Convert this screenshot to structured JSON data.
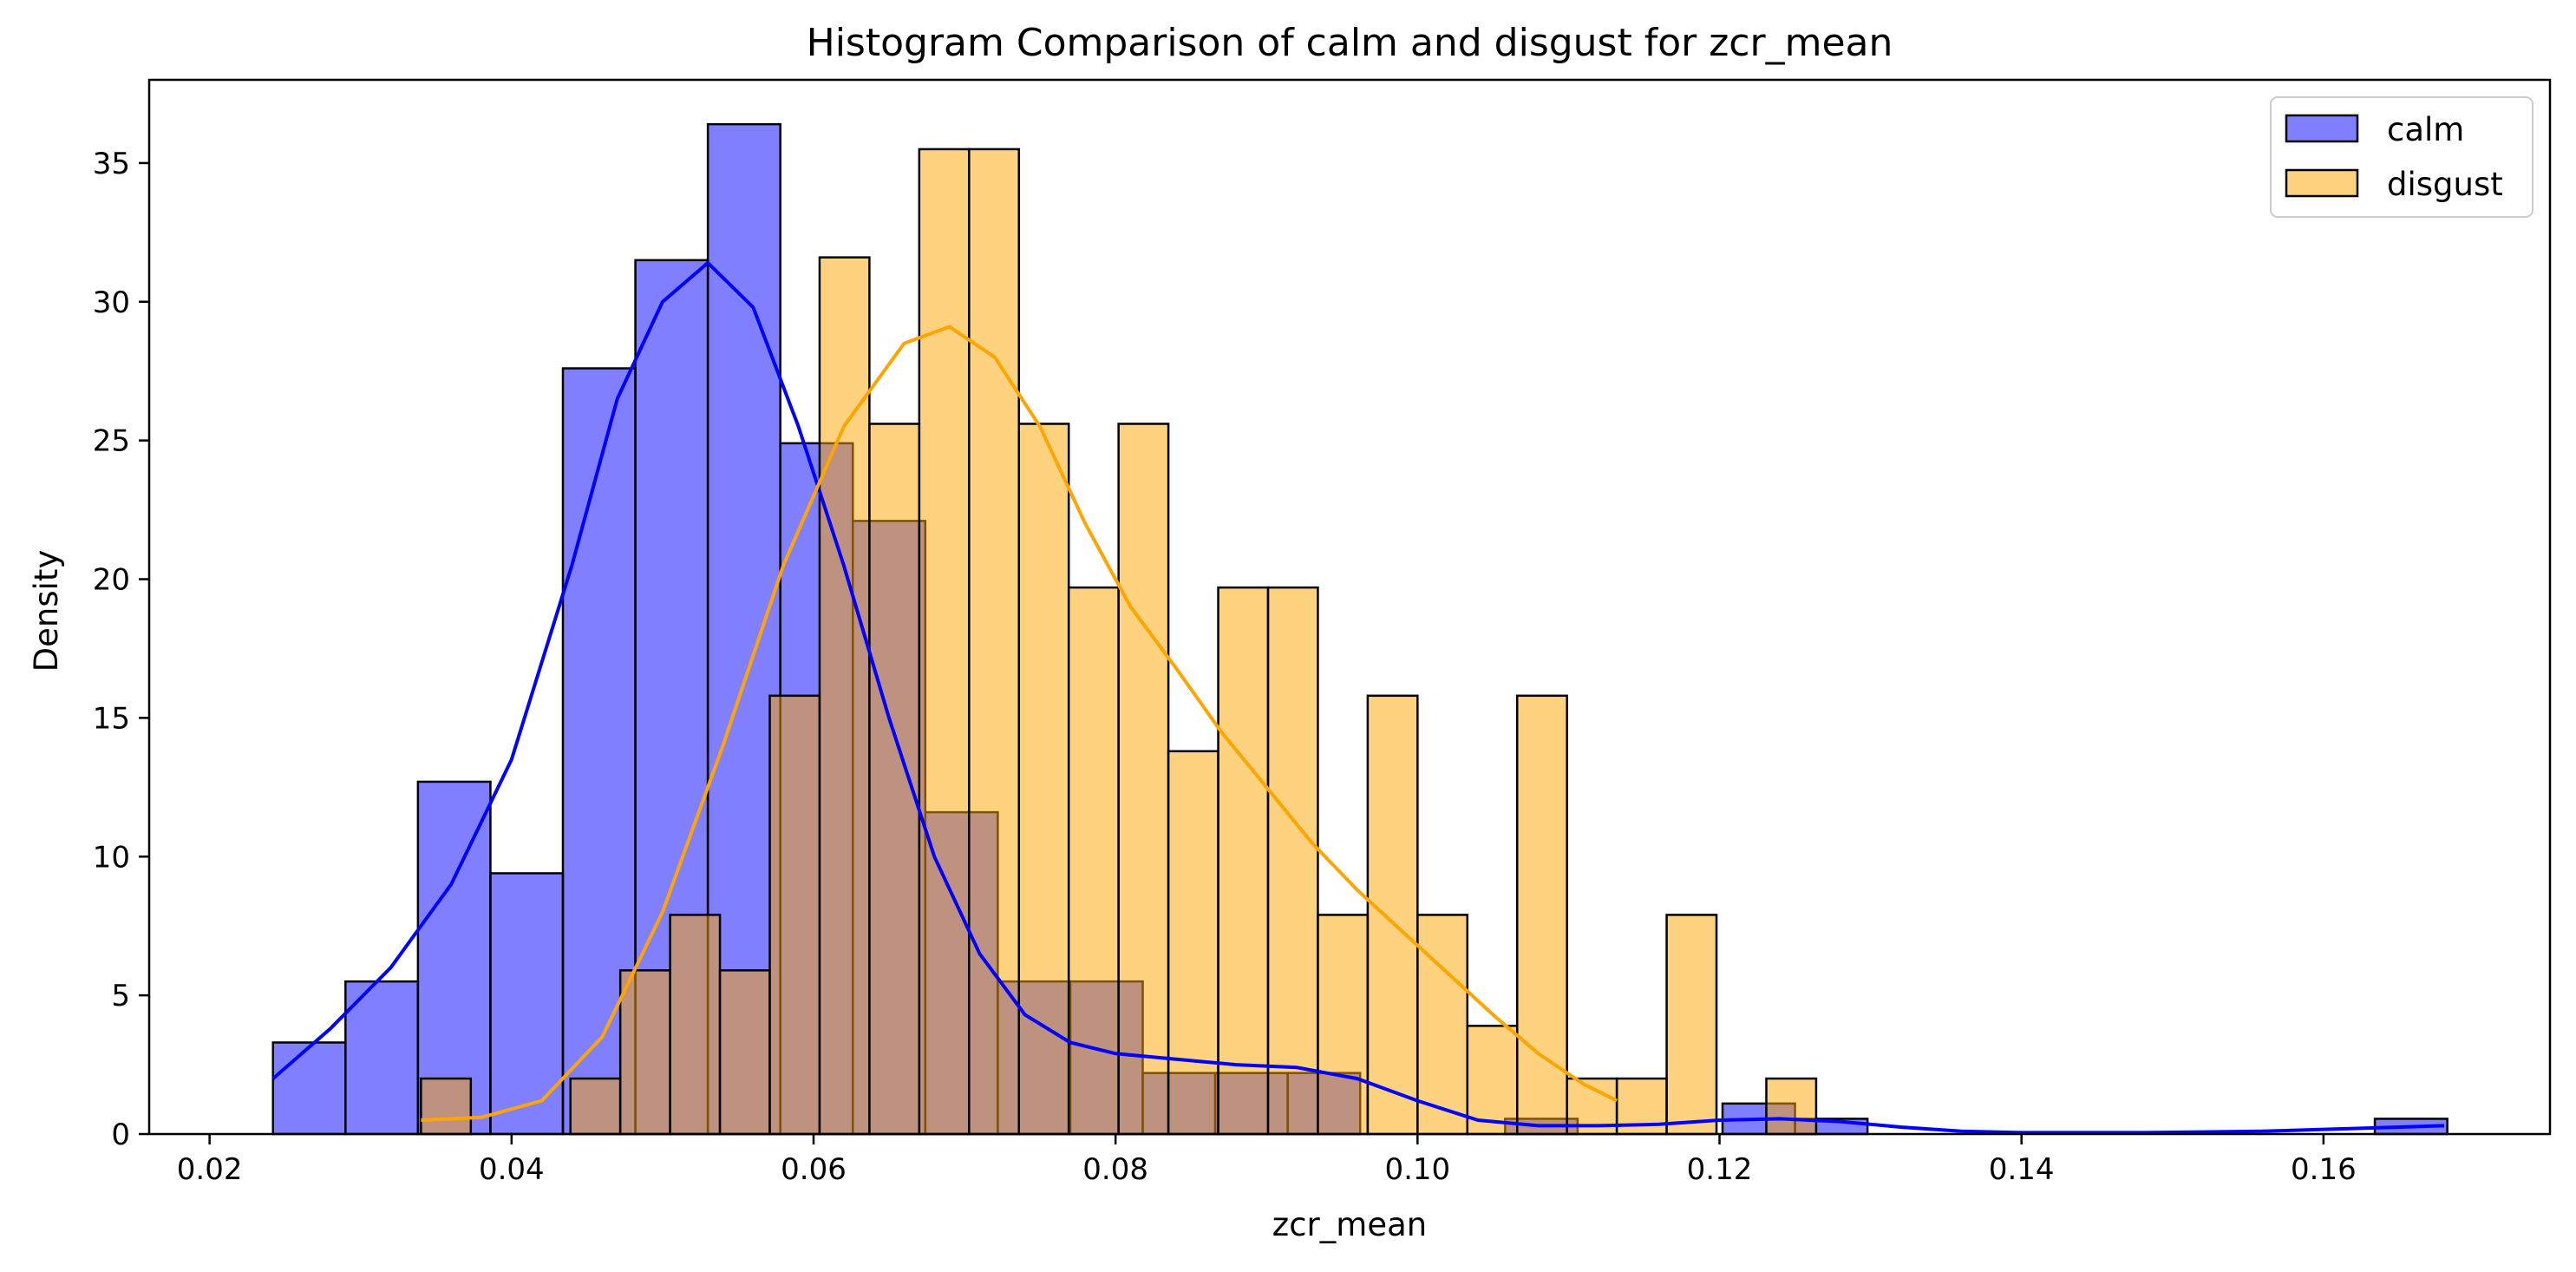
{
  "chart_data": {
    "type": "histogram",
    "title": "Histogram Comparison of calm and disgust for zcr_mean",
    "xlabel": "zcr_mean",
    "ylabel": "Density",
    "xlim": [
      0.016,
      0.175
    ],
    "ylim": [
      0,
      38
    ],
    "xticks": [
      0.02,
      0.04,
      0.06,
      0.08,
      0.1,
      0.12,
      0.14,
      0.16
    ],
    "xtick_labels": [
      "0.02",
      "0.04",
      "0.06",
      "0.08",
      "0.10",
      "0.12",
      "0.14",
      "0.16"
    ],
    "yticks": [
      0,
      5,
      10,
      15,
      20,
      25,
      30,
      35
    ],
    "ytick_labels": [
      "0",
      "5",
      "10",
      "15",
      "20",
      "25",
      "30",
      "35"
    ],
    "grid": false,
    "legend_position": "top-right",
    "series": [
      {
        "name": "calm",
        "color": "#0000ff",
        "fill_opacity": 0.5,
        "bins": [
          {
            "x0": 0.0242,
            "x1": 0.029,
            "y": 3.3
          },
          {
            "x0": 0.029,
            "x1": 0.0338,
            "y": 5.5
          },
          {
            "x0": 0.0338,
            "x1": 0.0386,
            "y": 12.7
          },
          {
            "x0": 0.0386,
            "x1": 0.0434,
            "y": 9.4
          },
          {
            "x0": 0.0434,
            "x1": 0.0482,
            "y": 27.6
          },
          {
            "x0": 0.0482,
            "x1": 0.053,
            "y": 31.5
          },
          {
            "x0": 0.053,
            "x1": 0.0578,
            "y": 36.4
          },
          {
            "x0": 0.0578,
            "x1": 0.0626,
            "y": 24.9
          },
          {
            "x0": 0.0626,
            "x1": 0.0674,
            "y": 22.1
          },
          {
            "x0": 0.0674,
            "x1": 0.0722,
            "y": 11.6
          },
          {
            "x0": 0.0722,
            "x1": 0.077,
            "y": 5.5
          },
          {
            "x0": 0.077,
            "x1": 0.0818,
            "y": 5.5
          },
          {
            "x0": 0.0818,
            "x1": 0.0866,
            "y": 2.2
          },
          {
            "x0": 0.0866,
            "x1": 0.0914,
            "y": 2.2
          },
          {
            "x0": 0.0914,
            "x1": 0.0962,
            "y": 2.2
          },
          {
            "x0": 0.0962,
            "x1": 0.101,
            "y": 0.0
          },
          {
            "x0": 0.101,
            "x1": 0.1058,
            "y": 0.0
          },
          {
            "x0": 0.1058,
            "x1": 0.1106,
            "y": 0.55
          },
          {
            "x0": 0.1106,
            "x1": 0.1154,
            "y": 0.0
          },
          {
            "x0": 0.1154,
            "x1": 0.1202,
            "y": 0.0
          },
          {
            "x0": 0.1202,
            "x1": 0.125,
            "y": 1.1
          },
          {
            "x0": 0.125,
            "x1": 0.1298,
            "y": 0.55
          },
          {
            "x0": 0.1298,
            "x1": 0.1346,
            "y": 0.0
          },
          {
            "x0": 0.1346,
            "x1": 0.1394,
            "y": 0.0
          },
          {
            "x0": 0.1394,
            "x1": 0.1442,
            "y": 0.0
          },
          {
            "x0": 0.1442,
            "x1": 0.149,
            "y": 0.0
          },
          {
            "x0": 0.149,
            "x1": 0.1538,
            "y": 0.0
          },
          {
            "x0": 0.1538,
            "x1": 0.1586,
            "y": 0.0
          },
          {
            "x0": 0.1586,
            "x1": 0.1634,
            "y": 0.0
          },
          {
            "x0": 0.1634,
            "x1": 0.1682,
            "y": 0.55
          }
        ],
        "kde": [
          [
            0.0242,
            2.0
          ],
          [
            0.028,
            3.8
          ],
          [
            0.032,
            6.0
          ],
          [
            0.036,
            9.0
          ],
          [
            0.04,
            13.5
          ],
          [
            0.044,
            20.5
          ],
          [
            0.047,
            26.5
          ],
          [
            0.05,
            30.0
          ],
          [
            0.053,
            31.4
          ],
          [
            0.056,
            29.8
          ],
          [
            0.059,
            25.5
          ],
          [
            0.062,
            20.5
          ],
          [
            0.065,
            15.0
          ],
          [
            0.068,
            10.0
          ],
          [
            0.071,
            6.5
          ],
          [
            0.074,
            4.3
          ],
          [
            0.077,
            3.3
          ],
          [
            0.08,
            2.9
          ],
          [
            0.084,
            2.7
          ],
          [
            0.088,
            2.5
          ],
          [
            0.092,
            2.4
          ],
          [
            0.096,
            2.0
          ],
          [
            0.1,
            1.2
          ],
          [
            0.104,
            0.5
          ],
          [
            0.108,
            0.3
          ],
          [
            0.112,
            0.3
          ],
          [
            0.116,
            0.35
          ],
          [
            0.12,
            0.5
          ],
          [
            0.124,
            0.55
          ],
          [
            0.128,
            0.45
          ],
          [
            0.132,
            0.25
          ],
          [
            0.136,
            0.1
          ],
          [
            0.14,
            0.05
          ],
          [
            0.148,
            0.05
          ],
          [
            0.156,
            0.1
          ],
          [
            0.162,
            0.2
          ],
          [
            0.168,
            0.3
          ]
        ]
      },
      {
        "name": "disgust",
        "color": "#ffa500",
        "fill_opacity": 0.5,
        "bins": [
          {
            "x0": 0.034,
            "x1": 0.0373,
            "y": 2.0
          },
          {
            "x0": 0.0373,
            "x1": 0.0406,
            "y": 0.0
          },
          {
            "x0": 0.0406,
            "x1": 0.0439,
            "y": 0.0
          },
          {
            "x0": 0.0439,
            "x1": 0.0472,
            "y": 2.0
          },
          {
            "x0": 0.0472,
            "x1": 0.0505,
            "y": 5.9
          },
          {
            "x0": 0.0505,
            "x1": 0.0538,
            "y": 7.9
          },
          {
            "x0": 0.0538,
            "x1": 0.0571,
            "y": 5.9
          },
          {
            "x0": 0.0571,
            "x1": 0.0604,
            "y": 15.8
          },
          {
            "x0": 0.0604,
            "x1": 0.0637,
            "y": 31.6
          },
          {
            "x0": 0.0637,
            "x1": 0.067,
            "y": 25.6
          },
          {
            "x0": 0.067,
            "x1": 0.0703,
            "y": 35.5
          },
          {
            "x0": 0.0703,
            "x1": 0.0736,
            "y": 35.5
          },
          {
            "x0": 0.0736,
            "x1": 0.0769,
            "y": 25.6
          },
          {
            "x0": 0.0769,
            "x1": 0.0802,
            "y": 19.7
          },
          {
            "x0": 0.0802,
            "x1": 0.0835,
            "y": 25.6
          },
          {
            "x0": 0.0835,
            "x1": 0.0868,
            "y": 13.8
          },
          {
            "x0": 0.0868,
            "x1": 0.0901,
            "y": 19.7
          },
          {
            "x0": 0.0901,
            "x1": 0.0934,
            "y": 19.7
          },
          {
            "x0": 0.0934,
            "x1": 0.0967,
            "y": 7.9
          },
          {
            "x0": 0.0967,
            "x1": 0.1,
            "y": 15.8
          },
          {
            "x0": 0.1,
            "x1": 0.1033,
            "y": 7.9
          },
          {
            "x0": 0.1033,
            "x1": 0.1066,
            "y": 3.9
          },
          {
            "x0": 0.1066,
            "x1": 0.1099,
            "y": 15.8
          },
          {
            "x0": 0.1099,
            "x1": 0.1132,
            "y": 2.0
          },
          {
            "x0": 0.1132,
            "x1": 0.1165,
            "y": 2.0
          },
          {
            "x0": 0.1165,
            "x1": 0.1198,
            "y": 7.9
          },
          {
            "x0": 0.1198,
            "x1": 0.1231,
            "y": 0.0
          },
          {
            "x0": 0.1231,
            "x1": 0.1264,
            "y": 2.0
          }
        ],
        "kde": [
          [
            0.034,
            0.5
          ],
          [
            0.038,
            0.6
          ],
          [
            0.042,
            1.2
          ],
          [
            0.046,
            3.5
          ],
          [
            0.05,
            8.0
          ],
          [
            0.054,
            14.0
          ],
          [
            0.058,
            20.5
          ],
          [
            0.062,
            25.5
          ],
          [
            0.066,
            28.5
          ],
          [
            0.069,
            29.1
          ],
          [
            0.072,
            28.0
          ],
          [
            0.075,
            25.5
          ],
          [
            0.078,
            22.0
          ],
          [
            0.081,
            19.0
          ],
          [
            0.084,
            16.8
          ],
          [
            0.087,
            14.5
          ],
          [
            0.09,
            12.5
          ],
          [
            0.093,
            10.5
          ],
          [
            0.096,
            8.8
          ],
          [
            0.099,
            7.3
          ],
          [
            0.102,
            5.8
          ],
          [
            0.105,
            4.3
          ],
          [
            0.108,
            2.9
          ],
          [
            0.111,
            1.8
          ],
          [
            0.1132,
            1.2
          ]
        ]
      }
    ]
  }
}
